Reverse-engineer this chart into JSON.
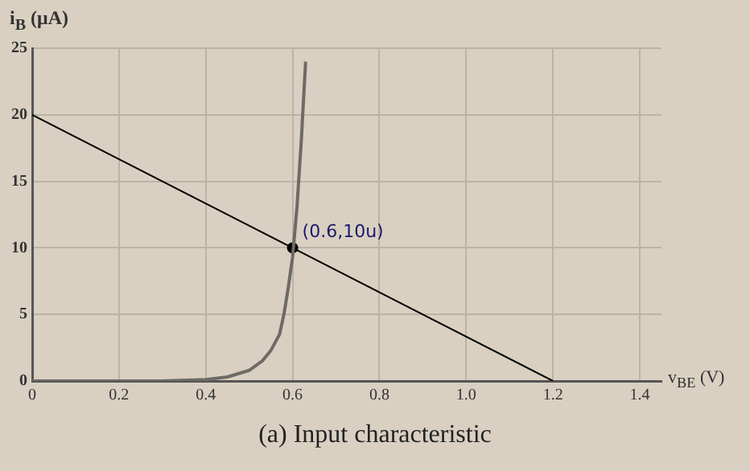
{
  "chart_data": {
    "type": "line",
    "title": "(a) Input characteristic",
    "xlabel": "v$_{BE}$ (V)",
    "ylabel": "i$_{B}$ (μA)",
    "xlim": [
      0,
      1.45
    ],
    "xticks": [
      0,
      0.2,
      0.4,
      0.6,
      0.8,
      {
        "value": 1,
        "label": "1.0"
      },
      1.2,
      1.4
    ],
    "ylim": [
      0,
      25
    ],
    "yticks": [
      0,
      5,
      10,
      15,
      20,
      25
    ],
    "grid": true,
    "legend": false,
    "series": [
      {
        "color": "#6e6a66",
        "marker": "none",
        "x": [
          0,
          0.2,
          0.3,
          0.4,
          0.45,
          0.5,
          0.53,
          0.55,
          0.57,
          0.58,
          0.59,
          0.6,
          0.61,
          0.62,
          0.63
        ],
        "values": [
          0,
          0,
          0,
          0.1,
          0.3,
          0.8,
          1.5,
          2.3,
          3.5,
          5,
          7,
          9.3,
          13,
          18,
          24
        ]
      },
      {
        "color": "#000000",
        "marker": "none",
        "x": [
          0,
          1.2
        ],
        "values": [
          20,
          0
        ]
      },
      {
        "type": "scatter",
        "color": "#000000",
        "marker": "circle",
        "x": [
          0.6
        ],
        "values": [
          10
        ]
      }
    ],
    "annotations": [
      {
        "text": "(0.6,10u)",
        "x": 0.6,
        "y": 10
      }
    ]
  }
}
